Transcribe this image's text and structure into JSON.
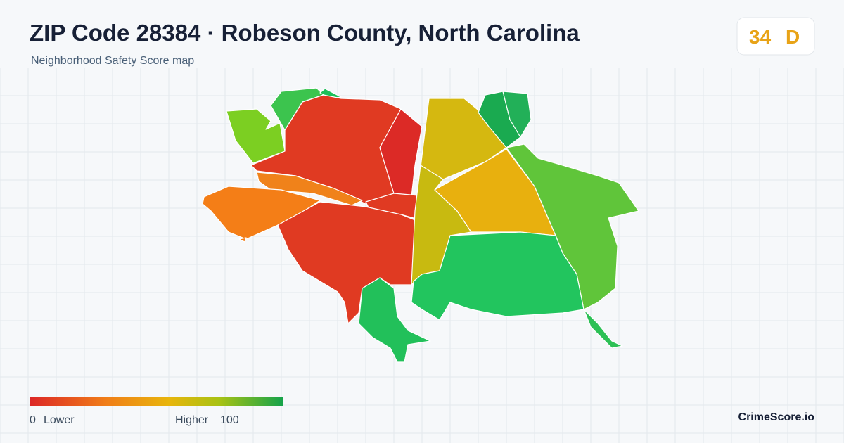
{
  "header": {
    "title": "ZIP Code 28384 · Robeson County, North Carolina",
    "subtitle": "Neighborhood Safety Score map"
  },
  "badge": {
    "score": 34,
    "grade": "D"
  },
  "legend": {
    "min": 0,
    "min_label": "Lower",
    "max_label": "Higher",
    "max": 100
  },
  "footer": {
    "brand": "CrimeScore.io"
  }
}
